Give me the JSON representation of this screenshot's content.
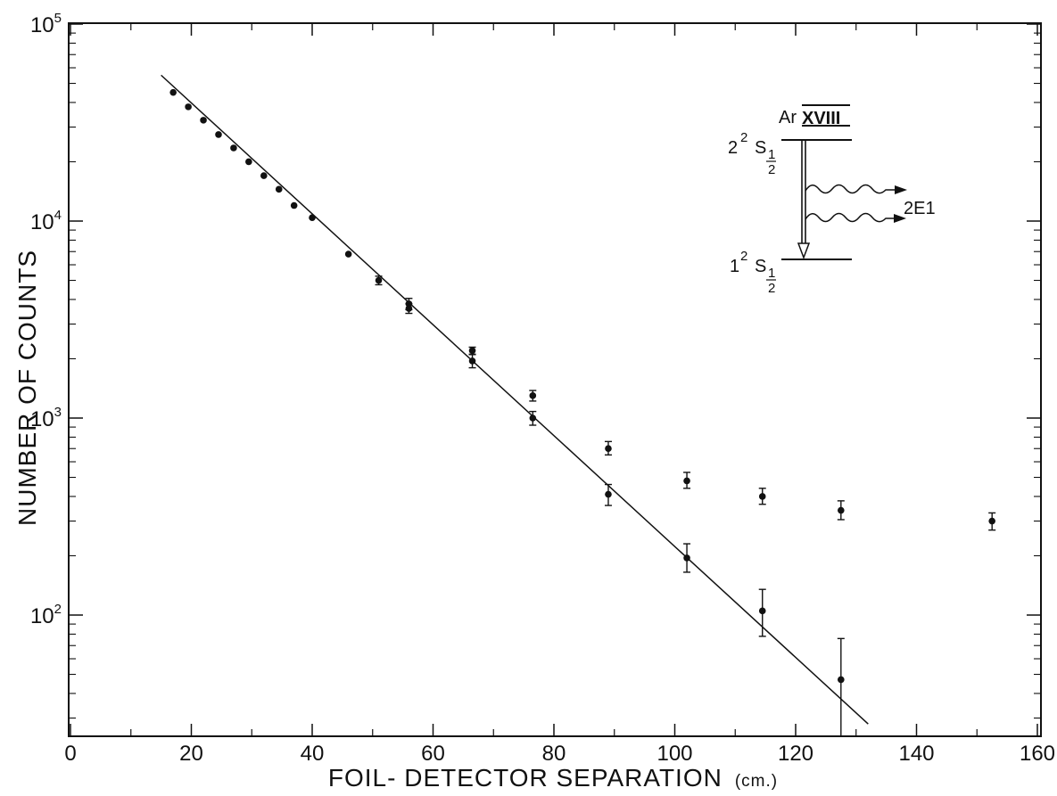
{
  "chart_data": {
    "type": "scatter",
    "title": "",
    "xlabel": "FOIL- DETECTOR SEPARATION",
    "xlabel_unit": "(cm.)",
    "ylabel": "NUMBER OF COUNTS",
    "xlim": [
      0,
      165
    ],
    "ylim": [
      25,
      100000
    ],
    "yscale": "log",
    "grid": false,
    "legend": "none",
    "x_ticks": [
      0,
      20,
      40,
      60,
      80,
      100,
      120,
      140,
      160
    ],
    "x_tick_labels": [
      "0",
      "20",
      "40",
      "60",
      "80",
      "100",
      "120",
      "140",
      "160"
    ],
    "y_ticks": [
      100,
      1000,
      10000,
      100000
    ],
    "y_tick_labels": [
      {
        "base": "10",
        "exp": "2"
      },
      {
        "base": "10",
        "exp": "3"
      },
      {
        "base": "10",
        "exp": "4"
      },
      {
        "base": "10",
        "exp": "5"
      }
    ],
    "series": [
      {
        "marker": "circle",
        "points": [
          {
            "x": 17,
            "y": 45000
          },
          {
            "x": 19.5,
            "y": 38000
          },
          {
            "x": 22,
            "y": 32500
          },
          {
            "x": 24.5,
            "y": 27500
          },
          {
            "x": 27,
            "y": 23500
          },
          {
            "x": 29.5,
            "y": 20000
          },
          {
            "x": 32,
            "y": 17000
          },
          {
            "x": 34.5,
            "y": 14500
          },
          {
            "x": 37,
            "y": 12000
          },
          {
            "x": 40,
            "y": 10400
          },
          {
            "x": 46,
            "y": 6800
          },
          {
            "x": 51,
            "y": 5000,
            "ylo": 4750,
            "yhi": 5250
          },
          {
            "x": 56,
            "y": 3800,
            "ylo": 3550,
            "yhi": 4050
          },
          {
            "x": 56,
            "y": 3600,
            "ylo": 3400,
            "yhi": 3800
          },
          {
            "x": 66.5,
            "y": 1950,
            "ylo": 1800,
            "yhi": 2100
          },
          {
            "x": 76.5,
            "y": 1000,
            "ylo": 920,
            "yhi": 1080
          },
          {
            "x": 89,
            "y": 410,
            "ylo": 360,
            "yhi": 460
          },
          {
            "x": 102,
            "y": 195,
            "ylo": 165,
            "yhi": 230
          },
          {
            "x": 114.5,
            "y": 105,
            "ylo": 78,
            "yhi": 135
          },
          {
            "x": 127.5,
            "y": 47,
            "ylo": 18,
            "yhi": 76
          }
        ]
      },
      {
        "marker": "circle",
        "points": [
          {
            "x": 66.5,
            "y": 2200,
            "ylo": 2110,
            "yhi": 2290
          },
          {
            "x": 76.5,
            "y": 1300,
            "ylo": 1220,
            "yhi": 1380
          },
          {
            "x": 89,
            "y": 700,
            "ylo": 650,
            "yhi": 760
          },
          {
            "x": 102,
            "y": 480,
            "ylo": 440,
            "yhi": 530
          },
          {
            "x": 114.5,
            "y": 400,
            "ylo": 365,
            "yhi": 440
          },
          {
            "x": 127.5,
            "y": 340,
            "ylo": 305,
            "yhi": 380
          },
          {
            "x": 152.5,
            "y": 300,
            "ylo": 270,
            "yhi": 330
          }
        ]
      }
    ],
    "fit_line": {
      "x1": 15,
      "y1": 55000,
      "x2": 132,
      "y2": 28
    },
    "inset": {
      "element": "Ar",
      "ion": "XVIII",
      "upper_level": {
        "n": "2",
        "n_sup": "2",
        "term": "S",
        "j_num": "1",
        "j_den": "2"
      },
      "lower_level": {
        "n": "1",
        "n_sup": "2",
        "term": "S",
        "j_num": "1",
        "j_den": "2"
      },
      "transition": "2E1"
    }
  }
}
